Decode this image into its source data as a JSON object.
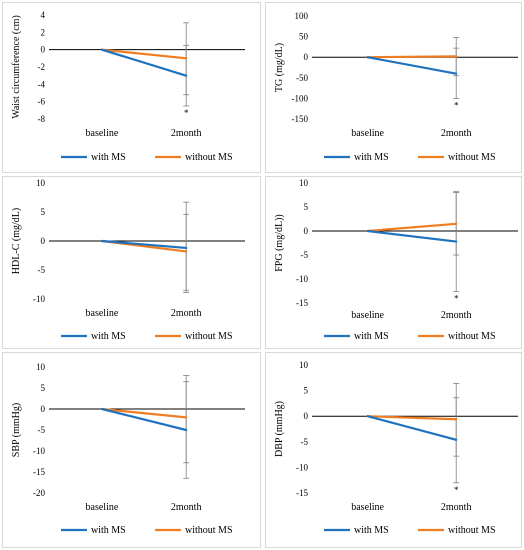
{
  "colors": {
    "with_ms": "#1f72bd",
    "without_ms": "#ef7d22",
    "axis": "#000000",
    "error": "#7f7f7f"
  },
  "legend": {
    "with_label": "with MS",
    "without_label": "without MS"
  },
  "chart_data": [
    {
      "type": "line",
      "ylabel": "Waist circumference (cm)",
      "ylim": [
        -8,
        4
      ],
      "yticks": [
        4,
        2,
        0,
        -2,
        -4,
        -6,
        -8
      ],
      "categories": [
        "baseline",
        "2month"
      ],
      "series": [
        {
          "name": "with MS",
          "values": [
            0,
            -3.0
          ],
          "error_2month": [
            -6.5,
            0.5
          ]
        },
        {
          "name": "without MS",
          "values": [
            0,
            -1.0
          ],
          "error_2month": [
            -5.2,
            3.1
          ]
        }
      ],
      "annotation": "*"
    },
    {
      "type": "line",
      "ylabel": "TG (mg/dL)",
      "ylim": [
        -150,
        100
      ],
      "yticks": [
        100,
        50,
        0,
        -50,
        -100,
        -150
      ],
      "categories": [
        "baseline",
        "2month"
      ],
      "series": [
        {
          "name": "with MS",
          "values": [
            0,
            -40
          ],
          "error_2month": [
            -100,
            22
          ]
        },
        {
          "name": "without MS",
          "values": [
            0,
            2
          ],
          "error_2month": [
            -45,
            48
          ]
        }
      ],
      "annotation": "*"
    },
    {
      "type": "line",
      "ylabel": "HDL-C (mg/dL)",
      "ylim": [
        -10,
        10
      ],
      "yticks": [
        10,
        5,
        0,
        -5,
        -10
      ],
      "categories": [
        "baseline",
        "2month"
      ],
      "series": [
        {
          "name": "with MS",
          "values": [
            0,
            -1.2
          ],
          "error_2month": [
            -8.5,
            6.7
          ]
        },
        {
          "name": "without MS",
          "values": [
            0,
            -1.8
          ],
          "error_2month": [
            -8.9,
            4.6
          ]
        }
      ],
      "annotation": ""
    },
    {
      "type": "line",
      "ylabel": "FPG (mg/dL))",
      "ylim": [
        -15,
        10
      ],
      "yticks": [
        10,
        5,
        0,
        -5,
        -10,
        -15
      ],
      "categories": [
        "baseline",
        "2month"
      ],
      "series": [
        {
          "name": "with MS",
          "values": [
            0,
            -2.2
          ],
          "error_2month": [
            -12.6,
            8.2
          ]
        },
        {
          "name": "without MS",
          "values": [
            0,
            1.5
          ],
          "error_2month": [
            -5.0,
            8.0
          ]
        }
      ],
      "annotation": "*"
    },
    {
      "type": "line",
      "ylabel": "SBP (mmHg)",
      "ylim": [
        -20,
        10
      ],
      "yticks": [
        10,
        5,
        0,
        -5,
        -10,
        -15,
        -20
      ],
      "categories": [
        "baseline",
        "2month"
      ],
      "series": [
        {
          "name": "with MS",
          "values": [
            0,
            -5.0
          ],
          "error_2month": [
            -16.5,
            6.5
          ]
        },
        {
          "name": "without MS",
          "values": [
            0,
            -2.0
          ],
          "error_2month": [
            -12.8,
            8.0
          ]
        }
      ],
      "annotation": ""
    },
    {
      "type": "line",
      "ylabel": "DBP (mmHg)",
      "ylim": [
        -15,
        10
      ],
      "yticks": [
        10,
        5,
        0,
        -5,
        -10,
        -15
      ],
      "categories": [
        "baseline",
        "2month"
      ],
      "series": [
        {
          "name": "with MS",
          "values": [
            0,
            -4.6
          ],
          "error_2month": [
            -13.0,
            3.6
          ]
        },
        {
          "name": "without MS",
          "values": [
            0,
            -0.6
          ],
          "error_2month": [
            -7.8,
            6.4
          ]
        }
      ],
      "annotation": "*"
    }
  ]
}
